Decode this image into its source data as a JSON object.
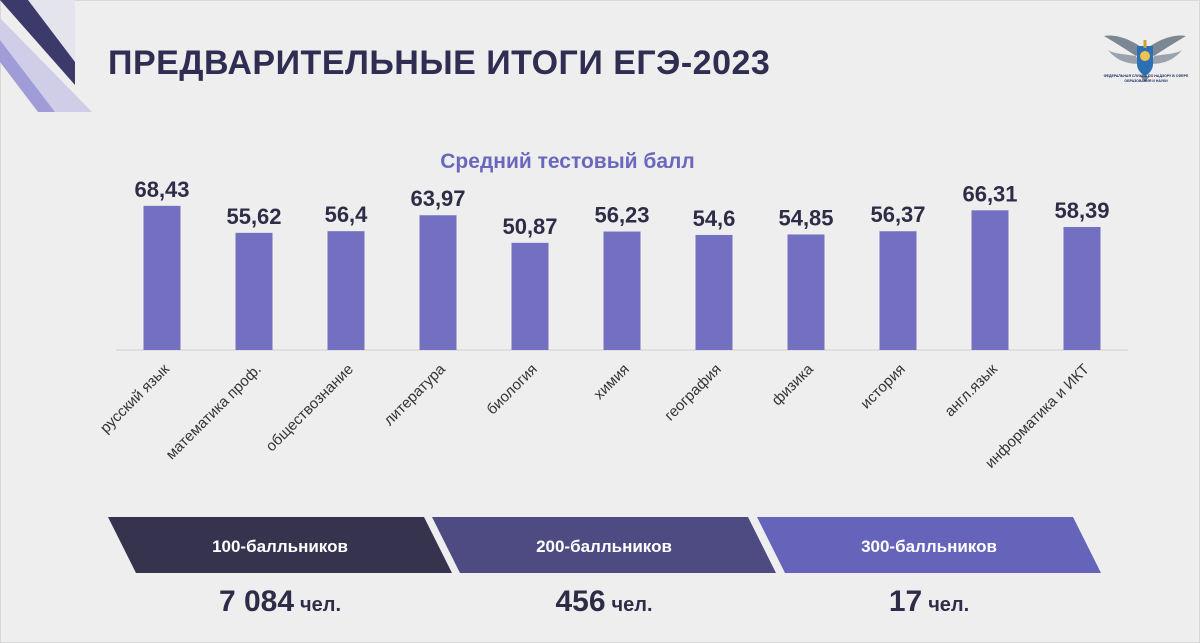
{
  "header": {
    "title": "ПРЕДВАРИТЕЛЬНЫЕ ИТОГИ ЕГЭ-2023",
    "logo_text": "ФЕДЕРАЛЬНАЯ СЛУЖБА ПО НАДЗОРУ В СФЕРЕ ОБРАЗОВАНИЯ И НАУКИ"
  },
  "chart_data": {
    "type": "bar",
    "title": "Средний тестовый балл",
    "xlabel": "",
    "ylabel": "",
    "ylim": [
      0,
      75
    ],
    "grid": false,
    "categories": [
      "русский язык",
      "математика проф.",
      "обществознание",
      "литература",
      "биология",
      "химия",
      "география",
      "физика",
      "история",
      "англ.язык",
      "информатика и ИКТ"
    ],
    "values": [
      68.43,
      55.62,
      56.4,
      63.97,
      50.87,
      56.23,
      54.6,
      54.85,
      56.37,
      66.31,
      58.39
    ],
    "value_labels": [
      "68,43",
      "55,62",
      "56,4",
      "63,97",
      "50,87",
      "56,23",
      "54,6",
      "54,85",
      "56,37",
      "66,31",
      "58,39"
    ],
    "bar_color": "#7370c1"
  },
  "summary": [
    {
      "label": "100-балльников",
      "value": "7 084",
      "unit": "чел.",
      "color": "#36334f"
    },
    {
      "label": "200-балльников",
      "value": "456",
      "unit": "чел.",
      "color": "#4e4b83"
    },
    {
      "label": "300-балльников",
      "value": "17",
      "unit": "чел.",
      "color": "#6663bb"
    }
  ],
  "colors": {
    "title": "#2f2e52",
    "subtitle": "#6a68bd",
    "background": "#eeeeee"
  }
}
